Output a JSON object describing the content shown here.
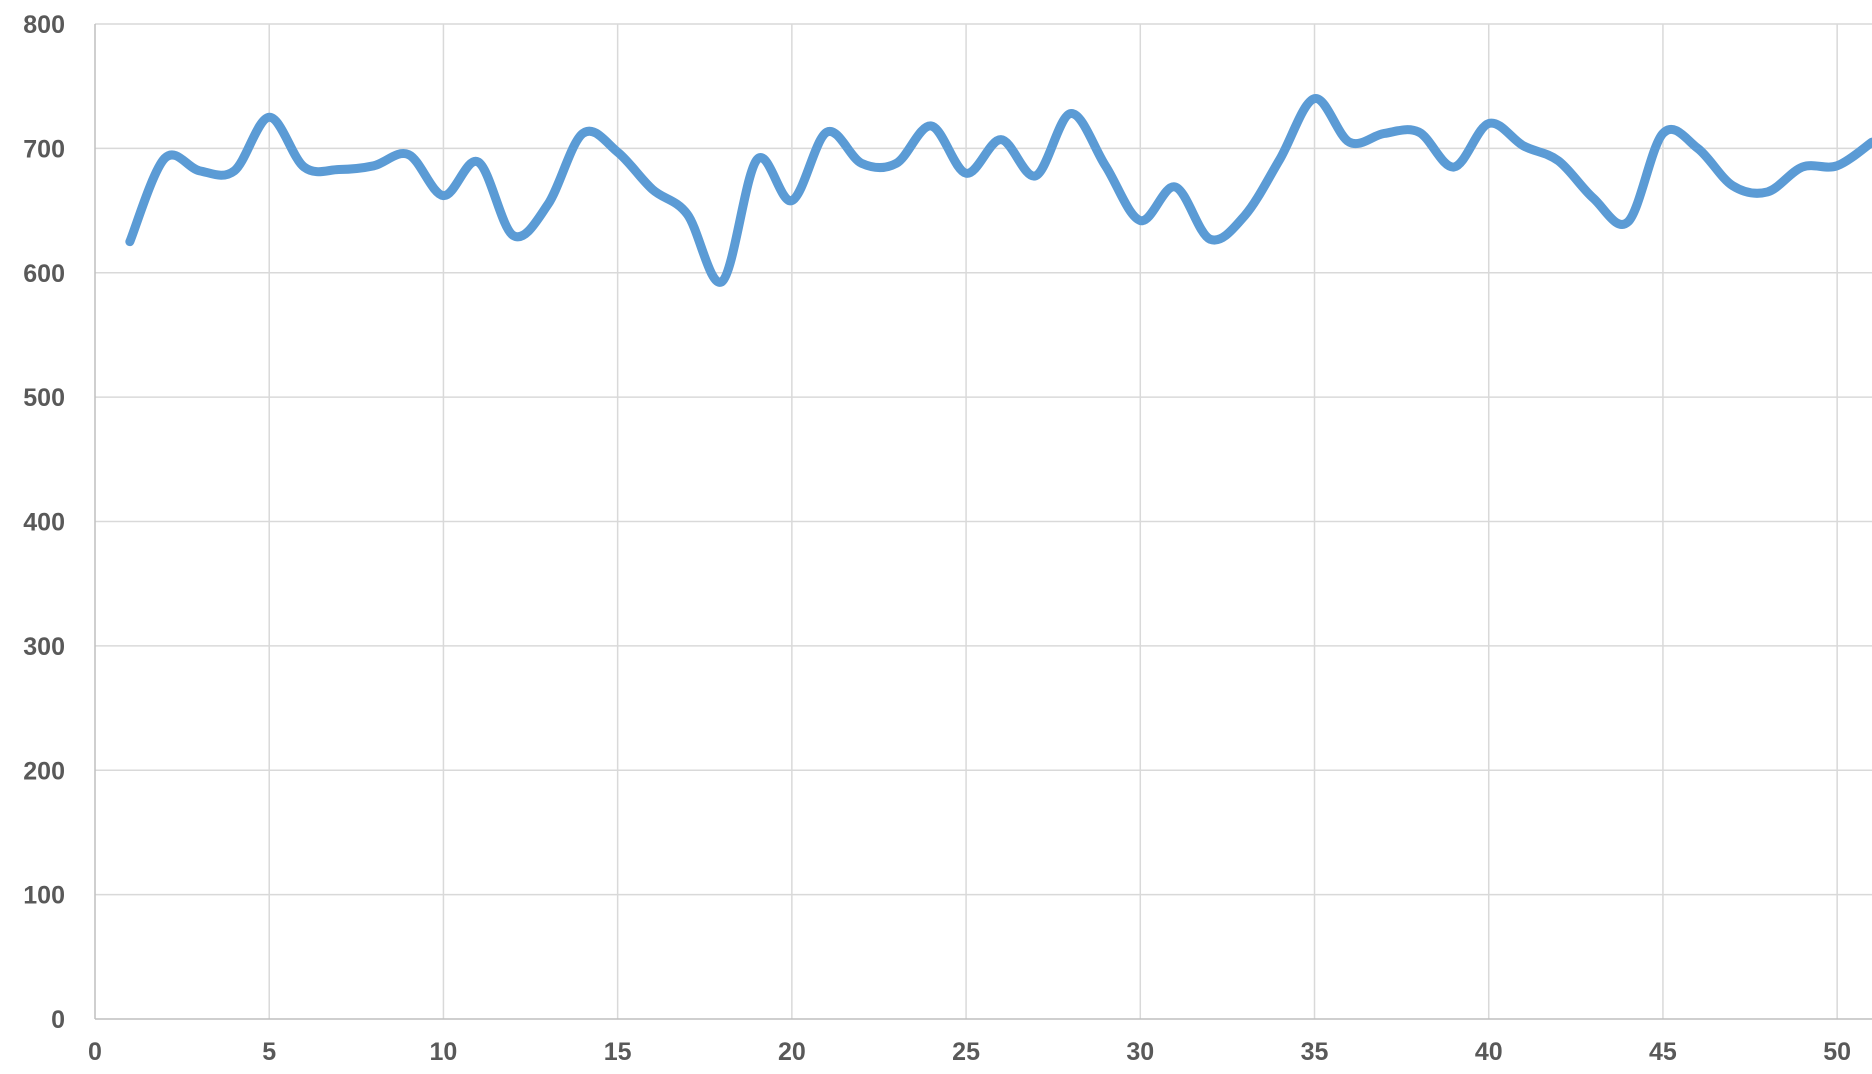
{
  "chart_data": {
    "type": "line",
    "title": "",
    "xlabel": "",
    "ylabel": "",
    "xlim": [
      0,
      51
    ],
    "ylim": [
      0,
      800
    ],
    "x_ticks": [
      0,
      5,
      10,
      15,
      20,
      25,
      30,
      35,
      40,
      45,
      50
    ],
    "y_ticks": [
      0,
      100,
      200,
      300,
      400,
      500,
      600,
      700,
      800
    ],
    "grid": true,
    "legend": "none",
    "smooth": true,
    "series": [
      {
        "color": "#5b9bd5",
        "x": [
          1,
          2,
          3,
          4,
          5,
          6,
          7,
          8,
          9,
          10,
          11,
          12,
          13,
          14,
          15,
          16,
          17,
          18,
          19,
          20,
          21,
          22,
          23,
          24,
          25,
          26,
          27,
          28,
          29,
          30,
          31,
          32,
          33,
          34,
          35,
          36,
          37,
          38,
          39,
          40,
          41,
          42,
          43,
          44,
          45,
          46,
          47,
          48,
          49,
          50,
          51
        ],
        "y": [
          625,
          692,
          682,
          682,
          725,
          685,
          683,
          686,
          695,
          662,
          689,
          630,
          655,
          712,
          697,
          667,
          647,
          593,
          691,
          658,
          713,
          688,
          688,
          718,
          680,
          707,
          678,
          728,
          686,
          642,
          669,
          627,
          646,
          691,
          740,
          705,
          712,
          713,
          685,
          720,
          702,
          690,
          660,
          641,
          712,
          700,
          670,
          665,
          685,
          686,
          705
        ]
      }
    ]
  }
}
